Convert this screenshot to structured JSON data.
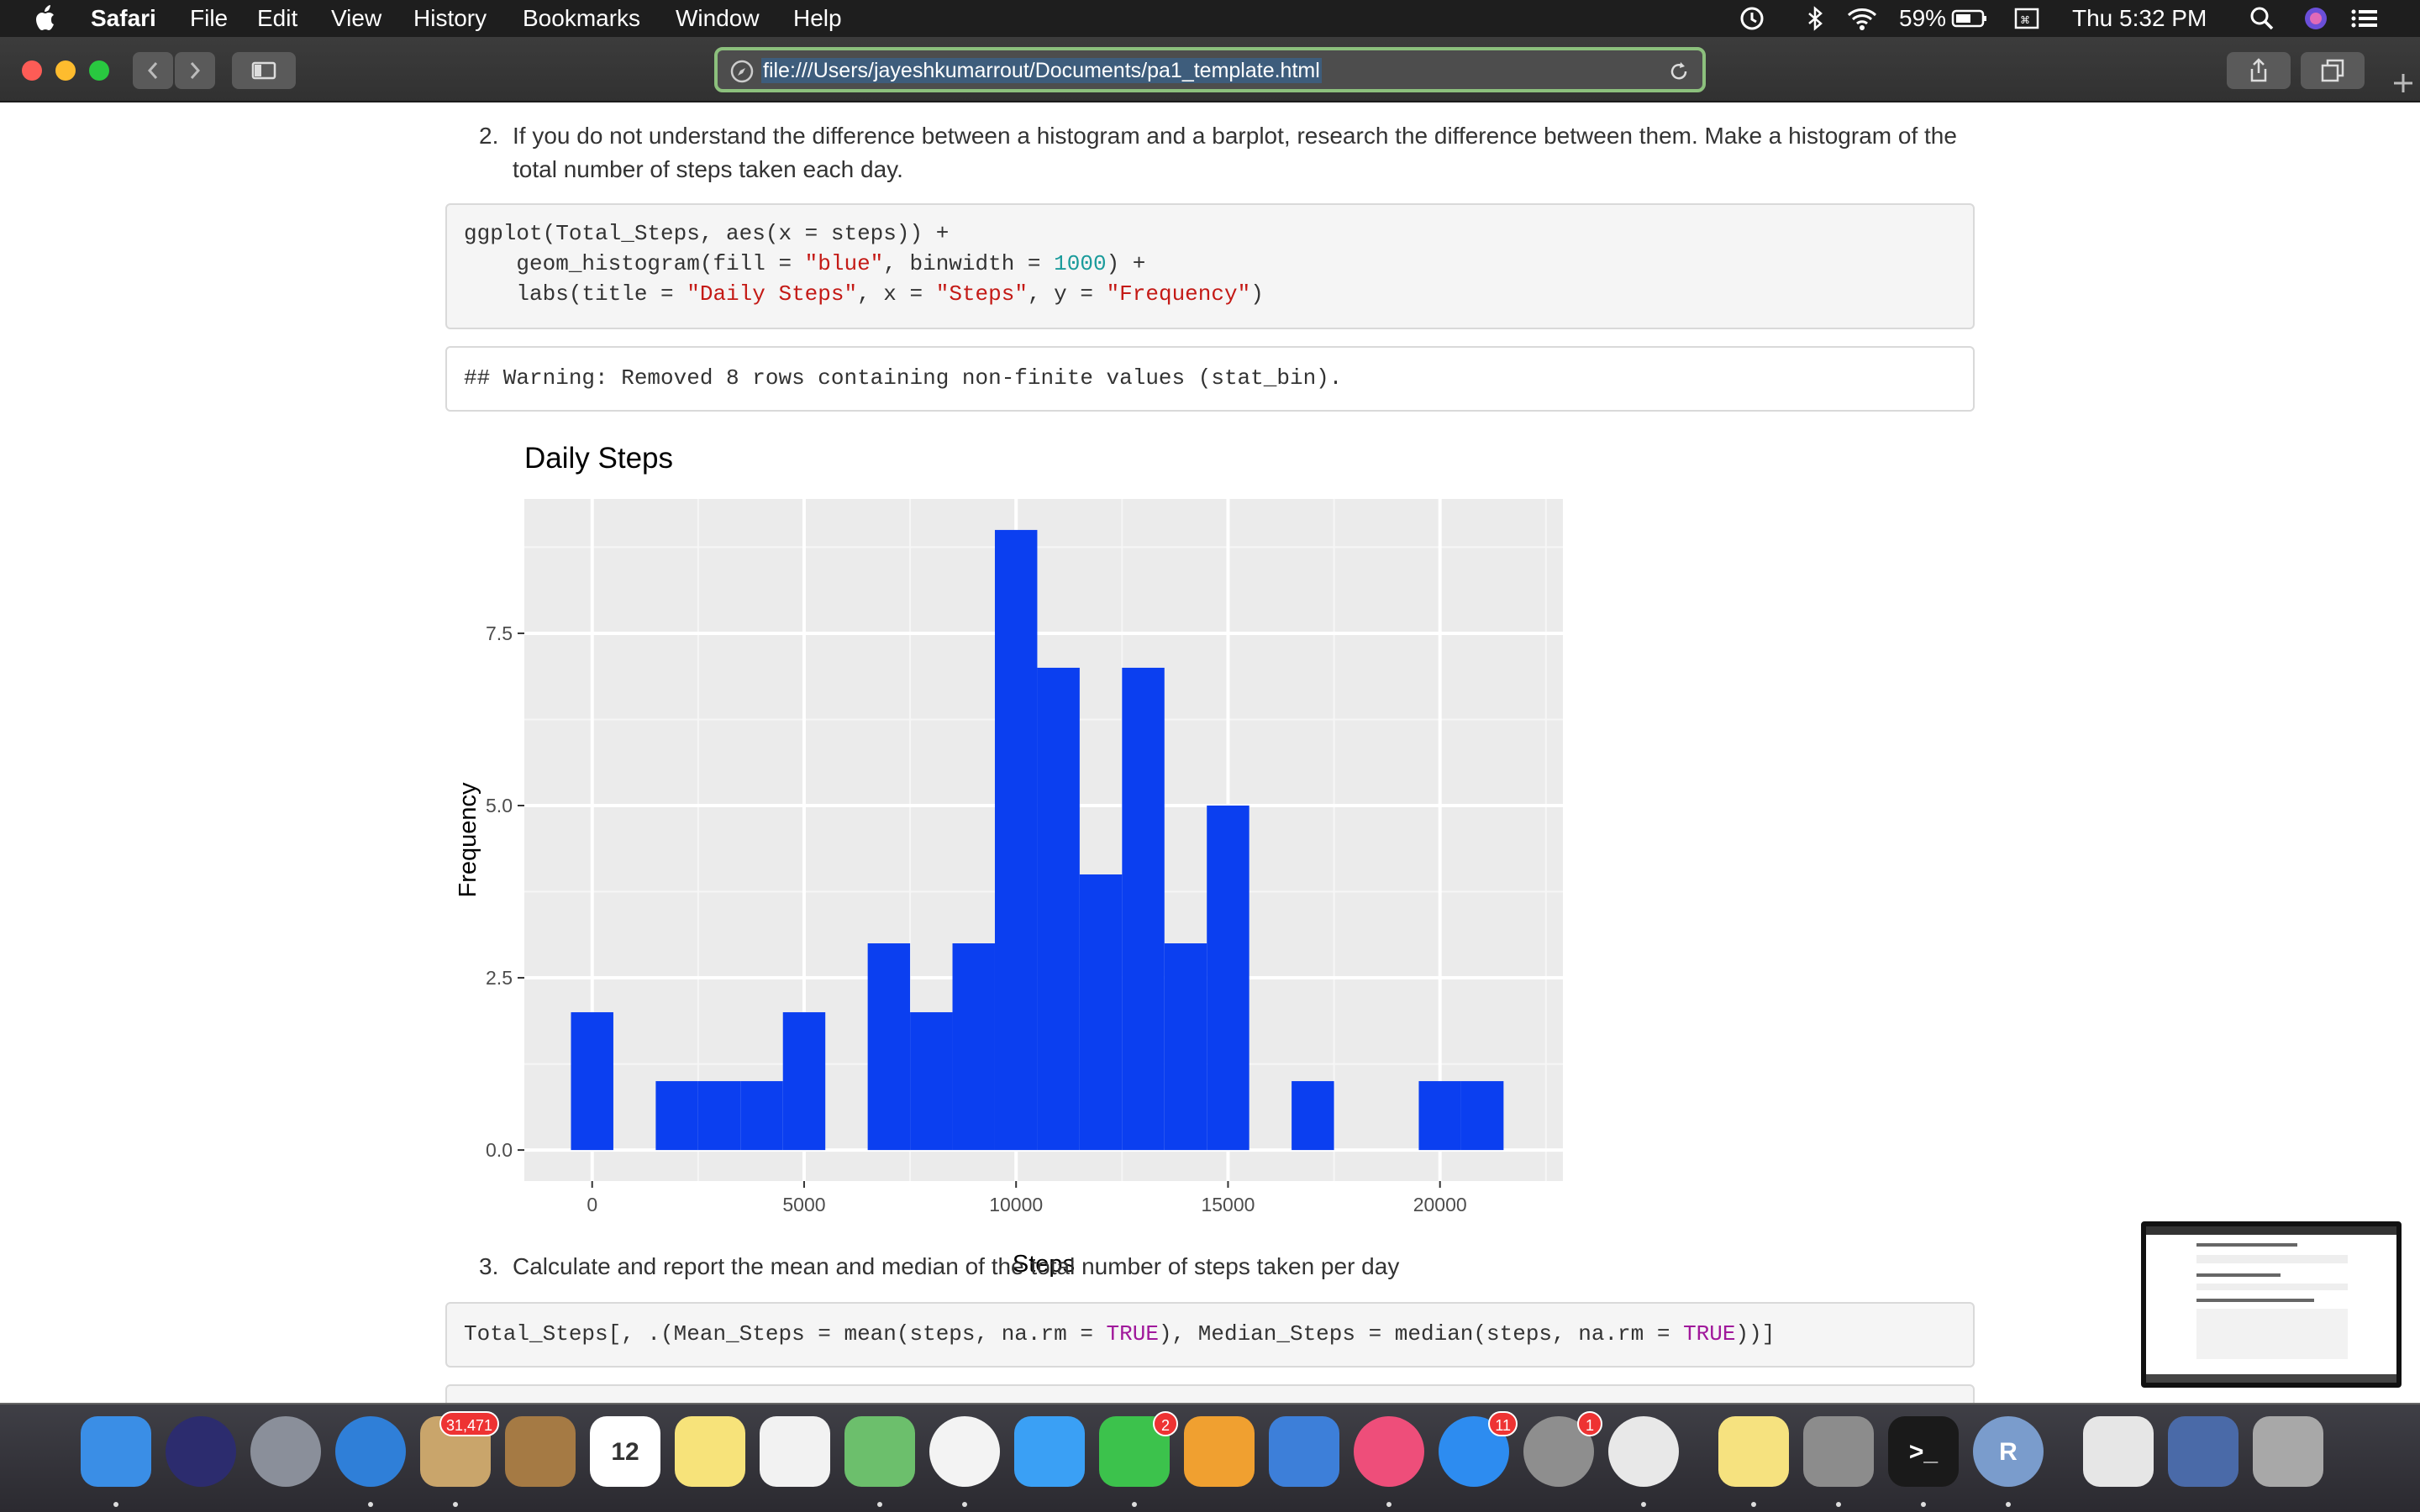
{
  "menubar": {
    "app": "Safari",
    "items": [
      "File",
      "Edit",
      "View",
      "History",
      "Bookmarks",
      "Window",
      "Help"
    ],
    "battery": "59%",
    "clock": "Thu 5:32 PM"
  },
  "toolbar": {
    "url": "file:///Users/jayeshkumarrout/Documents/pa1_template.html"
  },
  "content": {
    "item2_num": "2.",
    "item2_line1": "If you do not understand the difference between a histogram and a barplot, research the difference between them. Make a histogram of the",
    "item2_line2": "total number of steps taken each day.",
    "code1": {
      "l1": "ggplot(Total_Steps, aes(x = steps)) +",
      "l2a": "    geom_histogram(fill = ",
      "l2b": "\"blue\"",
      "l2c": ", binwidth = ",
      "l2d": "1000",
      "l2e": ") +",
      "l3a": "    labs(title = ",
      "l3b": "\"Daily Steps\"",
      "l3c": ", x = ",
      "l3d": "\"Steps\"",
      "l3e": ", y = ",
      "l3f": "\"Frequency\"",
      "l3g": ")"
    },
    "warning": "## Warning: Removed 8 rows containing non-finite values (stat_bin).",
    "item3_num": "3.",
    "item3_text": "Calculate and report the mean and median of the total number of steps taken per day",
    "code2": {
      "a": "Total_Steps[, .(Mean_Steps = mean(steps, na.rm = ",
      "b": "TRUE",
      "c": "), Median_Steps = median(steps, na.rm = ",
      "d": "TRUE",
      "e": "))]"
    }
  },
  "chart_data": {
    "type": "bar",
    "title": "Daily Steps",
    "xlabel": "Steps",
    "ylabel": "Frequency",
    "bar_color": "#0b3ff0",
    "panel_bg": "#ebebeb",
    "binwidth": 1000,
    "bins": [
      {
        "center": 0,
        "count": 2
      },
      {
        "center": 2000,
        "count": 1
      },
      {
        "center": 3000,
        "count": 1
      },
      {
        "center": 4000,
        "count": 1
      },
      {
        "center": 5000,
        "count": 2
      },
      {
        "center": 7000,
        "count": 3
      },
      {
        "center": 8000,
        "count": 2
      },
      {
        "center": 9000,
        "count": 3
      },
      {
        "center": 10000,
        "count": 9
      },
      {
        "center": 11000,
        "count": 7
      },
      {
        "center": 12000,
        "count": 4
      },
      {
        "center": 13000,
        "count": 7
      },
      {
        "center": 14000,
        "count": 3
      },
      {
        "center": 15000,
        "count": 5
      },
      {
        "center": 17000,
        "count": 1
      },
      {
        "center": 20000,
        "count": 1
      },
      {
        "center": 21000,
        "count": 1
      }
    ],
    "xlim": [
      -1600,
      22900
    ],
    "ylim": [
      -0.45,
      9.45
    ],
    "xticks": [
      0,
      5000,
      10000,
      15000,
      20000
    ],
    "xtick_labels": [
      "0",
      "5000",
      "10000",
      "15000",
      "20000"
    ],
    "yticks": [
      0,
      2.5,
      5,
      7.5
    ],
    "ytick_labels": [
      "0.0",
      "2.5",
      "5.0",
      "7.5"
    ],
    "grid": true
  },
  "dock": {
    "apps": [
      {
        "name": "Finder",
        "color": "#3a8ee6"
      },
      {
        "name": "Siri",
        "color": "#2c2c6e"
      },
      {
        "name": "Launchpad",
        "color": "#8a8f9a"
      },
      {
        "name": "Safari",
        "color": "#2f7fd8"
      },
      {
        "name": "Mail",
        "color": "#c9a56b",
        "badge": "31,471"
      },
      {
        "name": "Contacts",
        "color": "#a57a44"
      },
      {
        "name": "Calendar",
        "color": "#ffffff",
        "label": "12"
      },
      {
        "name": "Notes",
        "color": "#f7e37a"
      },
      {
        "name": "Reminders",
        "color": "#f2f2f2"
      },
      {
        "name": "Maps",
        "color": "#6cbf6c"
      },
      {
        "name": "Photos",
        "color": "#f3f3f3"
      },
      {
        "name": "Messages",
        "color": "#3aa0f5"
      },
      {
        "name": "FaceTime",
        "color": "#3cc24c",
        "badge": "2"
      },
      {
        "name": "Pages",
        "color": "#f0a030"
      },
      {
        "name": "Keynote",
        "color": "#3d7fd9"
      },
      {
        "name": "iTunes",
        "color": "#ee4e7a"
      },
      {
        "name": "App Store",
        "color": "#2d8cf0",
        "badge": "11"
      },
      {
        "name": "System Preferences",
        "color": "#8e8e8e",
        "badge": "1"
      },
      {
        "name": "Chrome",
        "color": "#e8e8e8"
      },
      {
        "name": "Stickies",
        "color": "#f6e27f"
      },
      {
        "name": "Calculator",
        "color": "#8c8c8c"
      },
      {
        "name": "Terminal",
        "color": "#1a1a1a",
        "label": ">_"
      },
      {
        "name": "RStudio",
        "color": "#7a9ccc",
        "label": "R"
      },
      {
        "name": "Documents",
        "color": "#e6e6e6"
      },
      {
        "name": "Downloads",
        "color": "#4a6aa8"
      },
      {
        "name": "Trash",
        "color": "#a8a8a8"
      }
    ]
  }
}
